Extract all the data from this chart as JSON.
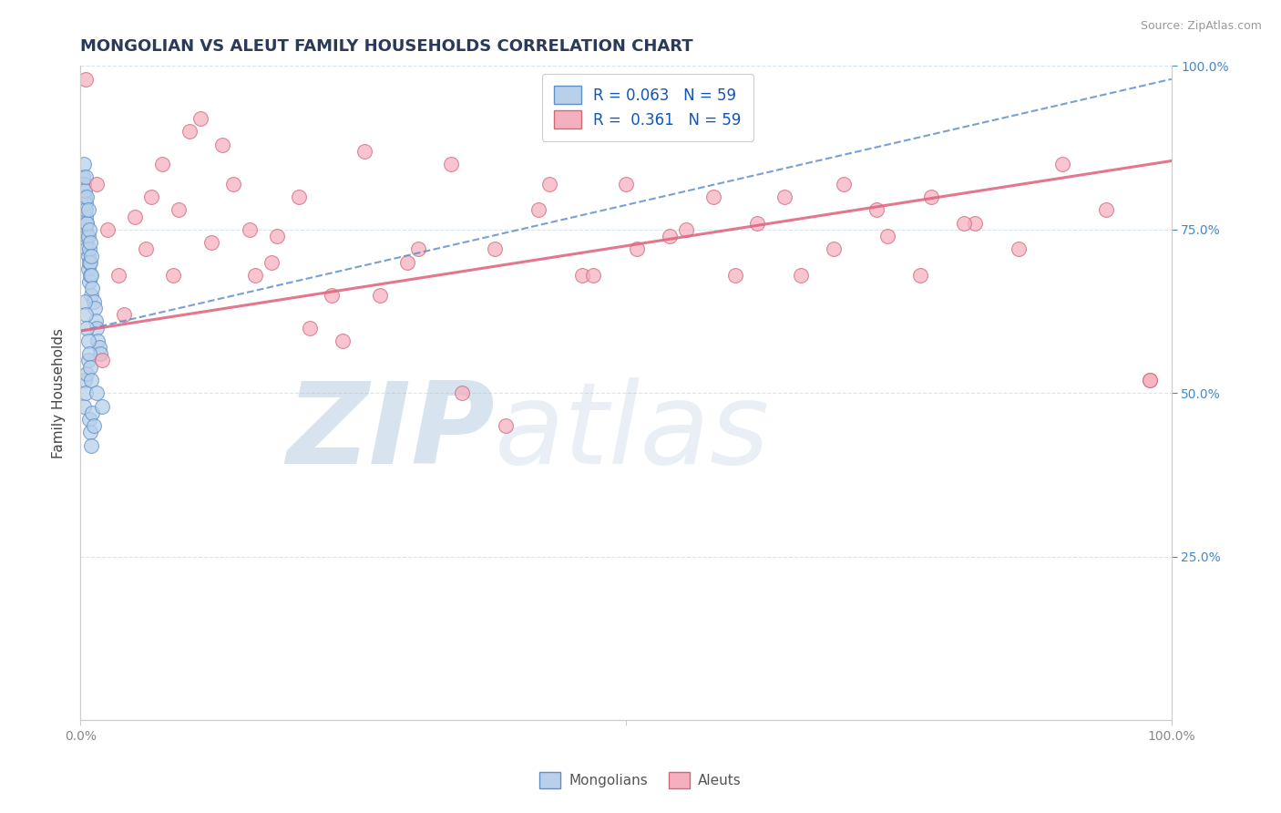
{
  "title": "MONGOLIAN VS ALEUT FAMILY HOUSEHOLDS CORRELATION CHART",
  "source": "Source: ZipAtlas.com",
  "ylabel": "Family Households",
  "xlim": [
    0.0,
    1.0
  ],
  "ylim": [
    0.0,
    1.0
  ],
  "mongolian_R": 0.063,
  "aleut_R": 0.361,
  "N": 59,
  "mongolian_fill": "#b8d0ea",
  "mongolian_edge": "#6090c8",
  "aleut_fill": "#f5b0c0",
  "aleut_edge": "#d06878",
  "mongolian_line_color": "#6090c8",
  "aleut_line_color": "#e06880",
  "background_color": "#ffffff",
  "watermark_color": "#c8d8ec",
  "grid_color": "#d8e4ee",
  "title_color": "#2a3a5a",
  "right_axis_color": "#4488cc",
  "tick_color": "#888888",
  "mongolian_x": [
    0.002,
    0.003,
    0.004,
    0.004,
    0.004,
    0.005,
    0.005,
    0.005,
    0.005,
    0.006,
    0.006,
    0.006,
    0.007,
    0.007,
    0.007,
    0.008,
    0.008,
    0.008,
    0.009,
    0.009,
    0.01,
    0.01,
    0.011,
    0.012,
    0.013,
    0.014,
    0.015,
    0.016,
    0.017,
    0.018,
    0.003,
    0.004,
    0.005,
    0.005,
    0.006,
    0.006,
    0.007,
    0.008,
    0.009,
    0.01,
    0.003,
    0.004,
    0.005,
    0.006,
    0.007,
    0.008,
    0.009,
    0.01,
    0.011,
    0.012,
    0.004,
    0.005,
    0.006,
    0.007,
    0.008,
    0.009,
    0.01,
    0.015,
    0.02
  ],
  "mongolian_y": [
    0.83,
    0.82,
    0.8,
    0.78,
    0.76,
    0.79,
    0.77,
    0.75,
    0.73,
    0.76,
    0.74,
    0.72,
    0.74,
    0.71,
    0.69,
    0.72,
    0.7,
    0.67,
    0.7,
    0.68,
    0.68,
    0.65,
    0.66,
    0.64,
    0.63,
    0.61,
    0.6,
    0.58,
    0.57,
    0.56,
    0.85,
    0.81,
    0.83,
    0.78,
    0.8,
    0.76,
    0.78,
    0.75,
    0.73,
    0.71,
    0.48,
    0.52,
    0.5,
    0.53,
    0.55,
    0.46,
    0.44,
    0.42,
    0.47,
    0.45,
    0.64,
    0.62,
    0.6,
    0.58,
    0.56,
    0.54,
    0.52,
    0.5,
    0.48
  ],
  "aleut_x": [
    0.005,
    0.015,
    0.025,
    0.035,
    0.05,
    0.06,
    0.075,
    0.09,
    0.1,
    0.12,
    0.14,
    0.16,
    0.18,
    0.2,
    0.23,
    0.26,
    0.3,
    0.34,
    0.38,
    0.42,
    0.46,
    0.5,
    0.54,
    0.58,
    0.62,
    0.66,
    0.7,
    0.74,
    0.78,
    0.82,
    0.86,
    0.9,
    0.94,
    0.98,
    0.02,
    0.04,
    0.065,
    0.085,
    0.11,
    0.13,
    0.155,
    0.175,
    0.21,
    0.24,
    0.275,
    0.31,
    0.35,
    0.39,
    0.43,
    0.47,
    0.51,
    0.555,
    0.6,
    0.645,
    0.69,
    0.73,
    0.77,
    0.81,
    0.98
  ],
  "aleut_y": [
    0.98,
    0.82,
    0.75,
    0.68,
    0.77,
    0.72,
    0.85,
    0.78,
    0.9,
    0.73,
    0.82,
    0.68,
    0.74,
    0.8,
    0.65,
    0.87,
    0.7,
    0.85,
    0.72,
    0.78,
    0.68,
    0.82,
    0.74,
    0.8,
    0.76,
    0.68,
    0.82,
    0.74,
    0.8,
    0.76,
    0.72,
    0.85,
    0.78,
    0.52,
    0.55,
    0.62,
    0.8,
    0.68,
    0.92,
    0.88,
    0.75,
    0.7,
    0.6,
    0.58,
    0.65,
    0.72,
    0.5,
    0.45,
    0.82,
    0.68,
    0.72,
    0.75,
    0.68,
    0.8,
    0.72,
    0.78,
    0.68,
    0.76,
    0.52
  ],
  "mongo_trend_x0": 0.0,
  "mongo_trend_x1": 1.0,
  "mongo_trend_y0": 0.595,
  "mongo_trend_y1": 0.98,
  "aleut_trend_x0": 0.0,
  "aleut_trend_x1": 1.0,
  "aleut_trend_y0": 0.595,
  "aleut_trend_y1": 0.855
}
